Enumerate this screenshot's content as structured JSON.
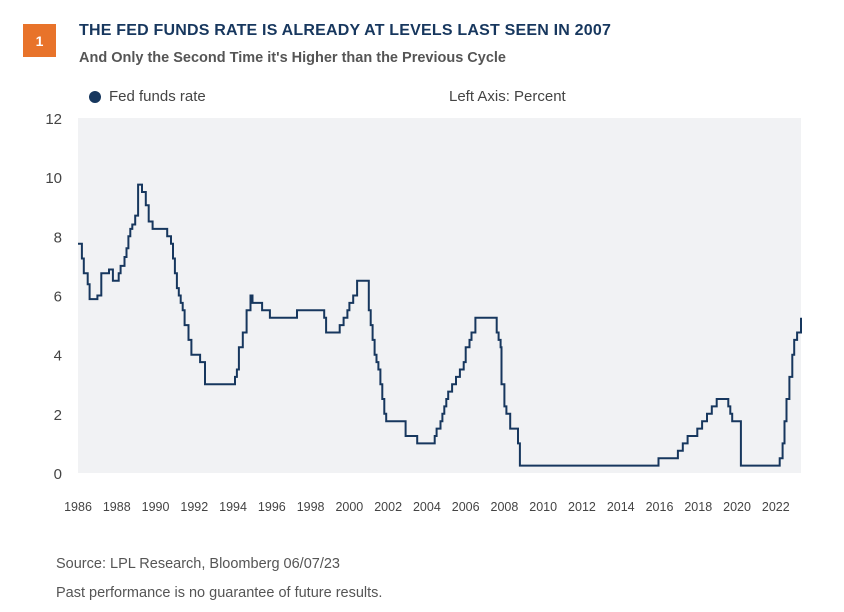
{
  "figure": {
    "number": "1",
    "title": "THE FED FUNDS RATE IS ALREADY AT LEVELS LAST SEEN IN 2007",
    "subtitle": "And Only the Second Time it's Higher than the Previous Cycle",
    "source": "Source: LPL Research, Bloomberg  06/07/23",
    "disclaimer": "Past performance is no guarantee of future results.",
    "axis_note": "Left Axis: Percent"
  },
  "colors": {
    "badge": "#e8732a",
    "title": "#17375e",
    "line": "#17375e",
    "plot_bg": "#f1f2f4"
  },
  "chart_data": {
    "type": "line",
    "title": "THE FED FUNDS RATE IS ALREADY AT LEVELS LAST SEEN IN 2007",
    "xlabel": "",
    "ylabel": "",
    "xlim": [
      1986,
      2023.3
    ],
    "ylim": [
      0,
      12
    ],
    "x_ticks": [
      "1986",
      "1988",
      "1990",
      "1992",
      "1994",
      "1996",
      "1998",
      "2000",
      "2002",
      "2004",
      "2006",
      "2008",
      "2010",
      "2012",
      "2014",
      "2016",
      "2018",
      "2020",
      "2022"
    ],
    "y_ticks": [
      "0",
      "2",
      "4",
      "6",
      "8",
      "10",
      "12"
    ],
    "grid": false,
    "legend_position": "top-left",
    "series": [
      {
        "name": "Fed funds rate",
        "step": true,
        "x": [
          1986.0,
          1986.2,
          1986.3,
          1986.5,
          1986.6,
          1987.0,
          1987.2,
          1987.6,
          1987.8,
          1988.1,
          1988.2,
          1988.4,
          1988.5,
          1988.6,
          1988.7,
          1988.8,
          1988.95,
          1989.1,
          1989.3,
          1989.5,
          1989.65,
          1989.85,
          1990.0,
          1990.6,
          1990.8,
          1990.9,
          1991.0,
          1991.1,
          1991.2,
          1991.3,
          1991.4,
          1991.5,
          1991.7,
          1991.85,
          1992.0,
          1992.3,
          1992.55,
          1994.1,
          1994.2,
          1994.3,
          1994.5,
          1994.7,
          1994.9,
          1995.0,
          1995.5,
          1995.9,
          1996.1,
          1997.3,
          1998.7,
          1998.8,
          1998.9,
          1999.5,
          1999.7,
          1999.9,
          2000.0,
          2000.2,
          2000.4,
          2000.9,
          2001.0,
          2001.1,
          2001.2,
          2001.3,
          2001.4,
          2001.5,
          2001.6,
          2001.7,
          2001.8,
          2001.9,
          2002.9,
          2003.5,
          2004.4,
          2004.5,
          2004.7,
          2004.8,
          2004.9,
          2005.0,
          2005.1,
          2005.3,
          2005.5,
          2005.7,
          2005.9,
          2006.0,
          2006.2,
          2006.3,
          2006.5,
          2007.6,
          2007.7,
          2007.8,
          2007.85,
          2008.0,
          2008.1,
          2008.3,
          2008.7,
          2008.8,
          2008.95,
          2015.95,
          2016.95,
          2017.2,
          2017.45,
          2017.95,
          2018.2,
          2018.45,
          2018.7,
          2018.95,
          2019.55,
          2019.65,
          2019.75,
          2020.2,
          2022.2,
          2022.35,
          2022.45,
          2022.55,
          2022.7,
          2022.85,
          2022.95,
          2023.1,
          2023.3
        ],
        "values": [
          7.75,
          7.25,
          6.75,
          6.38,
          5.88,
          6.0,
          6.75,
          6.88,
          6.5,
          6.75,
          7.0,
          7.3,
          7.6,
          8.0,
          8.25,
          8.4,
          8.7,
          9.75,
          9.5,
          9.05,
          8.5,
          8.25,
          8.25,
          8.0,
          7.75,
          7.25,
          6.75,
          6.25,
          6.0,
          5.75,
          5.5,
          5.0,
          4.5,
          4.0,
          4.0,
          3.75,
          3.0,
          3.25,
          3.5,
          4.25,
          4.75,
          5.5,
          6.0,
          5.75,
          5.5,
          5.25,
          5.25,
          5.5,
          5.25,
          4.75,
          4.75,
          5.0,
          5.25,
          5.5,
          5.75,
          6.0,
          6.5,
          6.5,
          5.5,
          5.0,
          4.5,
          4.0,
          3.75,
          3.5,
          3.0,
          2.5,
          2.0,
          1.75,
          1.25,
          1.0,
          1.25,
          1.5,
          1.75,
          2.0,
          2.25,
          2.5,
          2.75,
          3.0,
          3.25,
          3.5,
          3.75,
          4.25,
          4.5,
          4.75,
          5.25,
          4.75,
          4.5,
          4.25,
          3.0,
          2.25,
          2.0,
          1.5,
          1.0,
          0.25,
          0.25,
          0.5,
          0.75,
          1.0,
          1.25,
          1.5,
          1.75,
          2.0,
          2.25,
          2.5,
          2.25,
          2.0,
          1.75,
          0.25,
          0.5,
          1.0,
          1.75,
          2.5,
          3.25,
          4.0,
          4.5,
          4.75,
          5.25
        ]
      }
    ]
  }
}
